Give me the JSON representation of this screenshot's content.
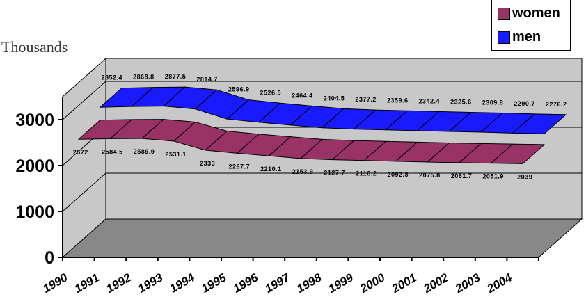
{
  "chart_data": {
    "type": "area",
    "unit_label": "Thousands",
    "categories": [
      "1990",
      "1991",
      "1992",
      "1993",
      "1994",
      "1995",
      "1996",
      "1997",
      "1998",
      "1999",
      "2000",
      "2001",
      "2002",
      "2003",
      "2004"
    ],
    "y_ticks": [
      "0",
      "1000",
      "2000",
      "3000"
    ],
    "ylim": [
      0,
      3000
    ],
    "grid": true,
    "legend_position": "top-right",
    "series": [
      {
        "name": "men",
        "color": "#1a1aff",
        "points": [
          {
            "x": 0,
            "value": 2852.4,
            "label": "2852.4"
          },
          {
            "x": 1,
            "value": 2868.8,
            "label": "2868.8"
          },
          {
            "x": 2,
            "value": 2877.5,
            "label": "2877.5"
          },
          {
            "x": 3,
            "value": 2814.7,
            "label": "2814.7"
          },
          {
            "x": 4,
            "value": 2596.9,
            "label": "2596.9"
          },
          {
            "x": 5,
            "value": 2526.5,
            "label": "2526.5"
          },
          {
            "x": 6,
            "value": 2464.4,
            "label": "2464.4"
          },
          {
            "x": 7,
            "value": 2404.5,
            "label": "2404.5"
          },
          {
            "x": 8,
            "value": 2377.2,
            "label": "2377.2"
          },
          {
            "x": 9,
            "value": 2359.6,
            "label": "2359.6"
          },
          {
            "x": 10,
            "value": 2342.4,
            "label": "2342.4"
          },
          {
            "x": 11,
            "value": 2325.6,
            "label": "2325.6"
          },
          {
            "x": 12,
            "value": 2309.8,
            "label": "2309.8"
          },
          {
            "x": 13,
            "value": 2290.7,
            "label": "2290.7"
          },
          {
            "x": 14,
            "value": 2276.2,
            "label": "2276.2"
          }
        ]
      },
      {
        "name": "women",
        "color": "#993366",
        "points": [
          {
            "x": 0,
            "value": 2572,
            "label": "2572"
          },
          {
            "x": 1,
            "value": 2584.5,
            "label": "2584.5"
          },
          {
            "x": 2,
            "value": 2589.9,
            "label": "2589.9"
          },
          {
            "x": 3,
            "value": 2531.1,
            "label": "2531.1"
          },
          {
            "x": 4,
            "value": 2333,
            "label": "2333"
          },
          {
            "x": 5,
            "value": 2267.7,
            "label": "2267.7"
          },
          {
            "x": 6,
            "value": 2210.1,
            "label": "2210.1"
          },
          {
            "x": 7,
            "value": 2153.9,
            "label": "2153.9"
          },
          {
            "x": 8,
            "value": 2127.7,
            "label": "2127.7"
          },
          {
            "x": 9,
            "value": 2110.2,
            "label": "2110.2"
          },
          {
            "x": 10,
            "value": 2092.8,
            "label": "2092.8"
          },
          {
            "x": 11,
            "value": 2075.8,
            "label": "2075.8"
          },
          {
            "x": 12,
            "value": 2061.7,
            "label": "2061.7"
          },
          {
            "x": 13,
            "value": 2051.9,
            "label": "2051.9"
          },
          {
            "x": 14,
            "value": 2039,
            "label": "2039"
          }
        ]
      }
    ]
  }
}
